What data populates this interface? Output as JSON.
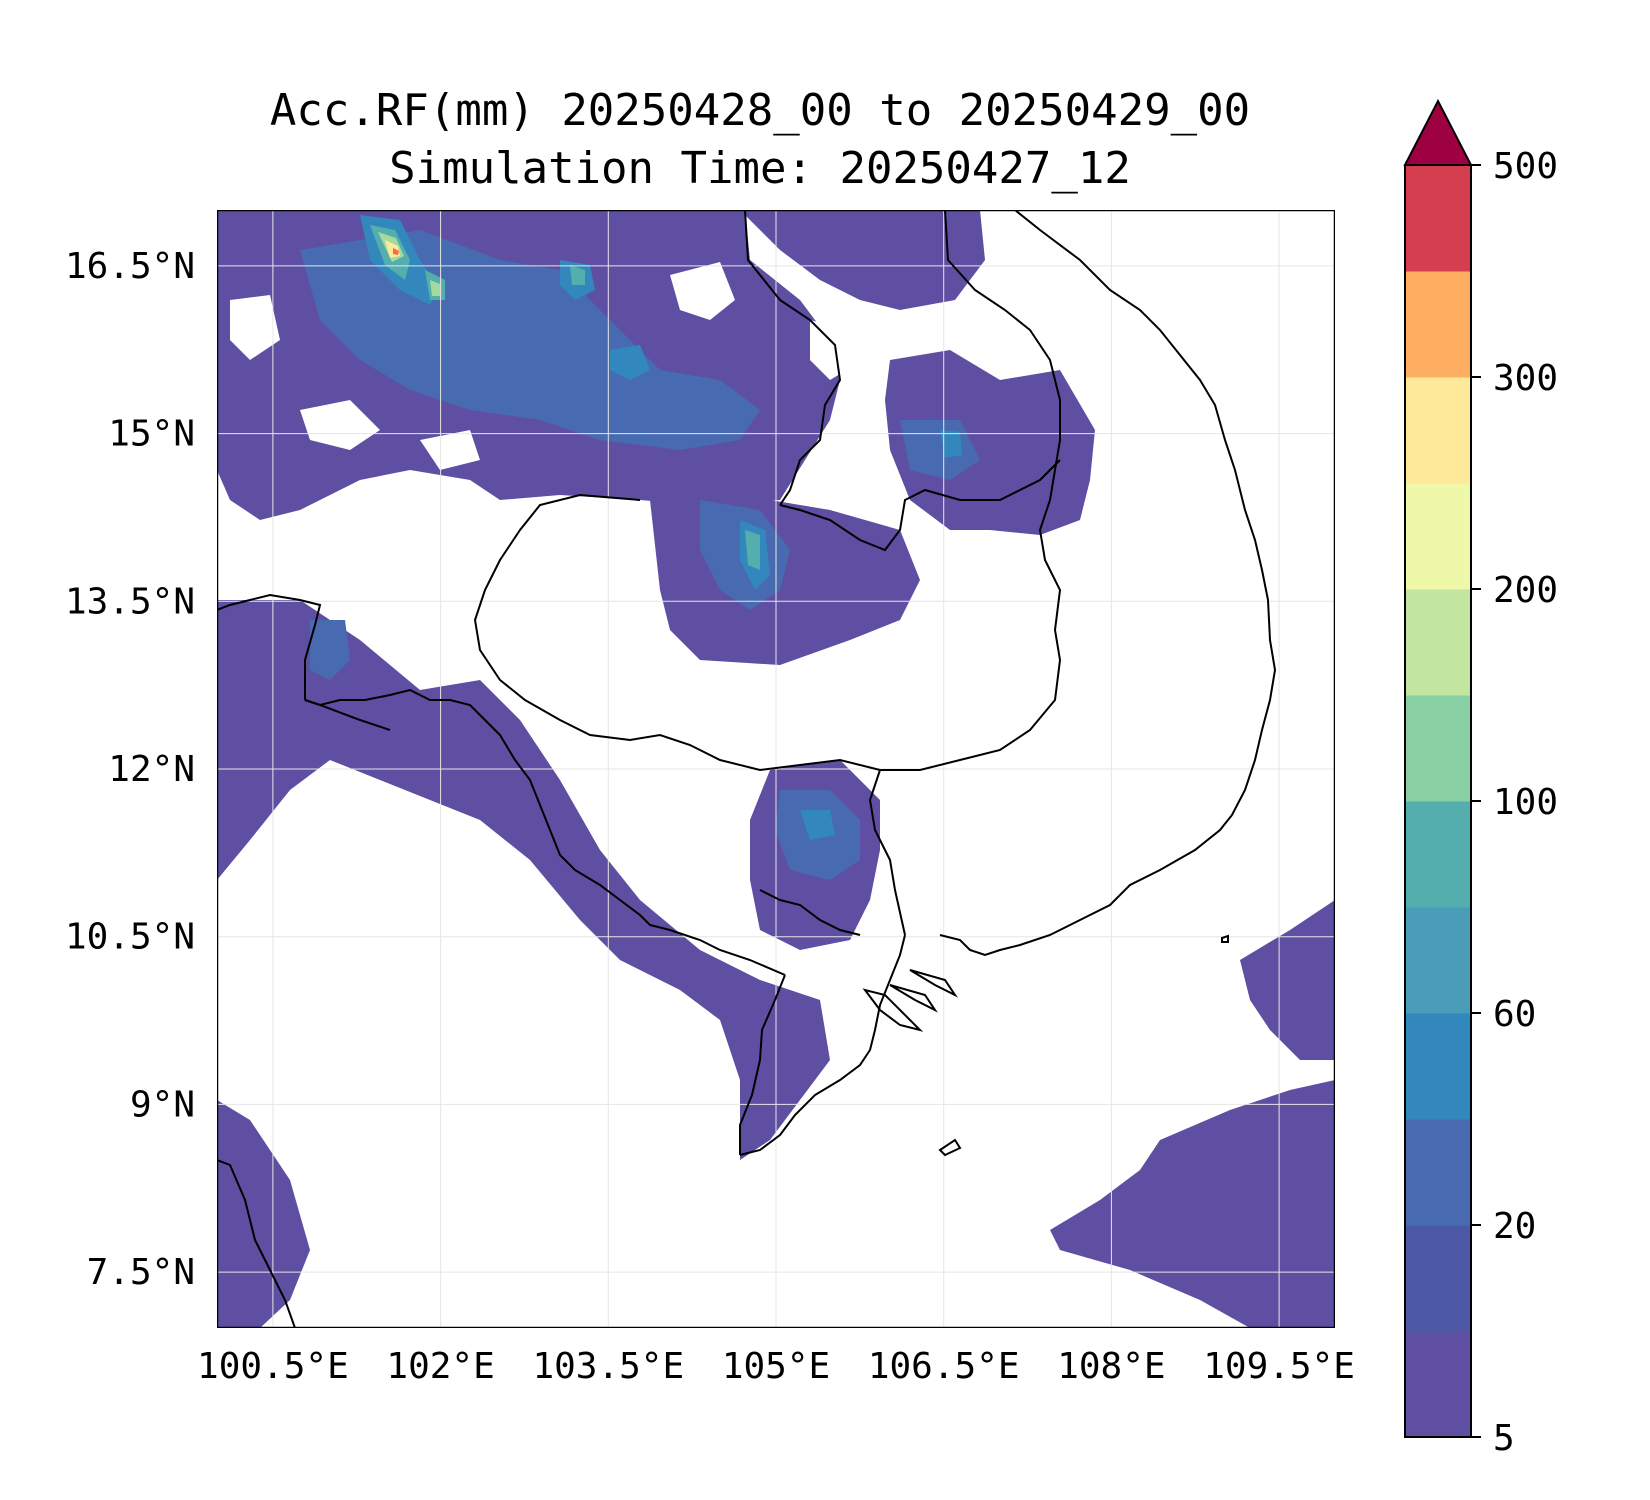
{
  "title": {
    "line1": "Acc.RF(mm) 20250428_00 to 20250429_00",
    "line2": "Simulation Time: 20250427_12"
  },
  "map": {
    "lon_range": [
      100.0,
      110.0
    ],
    "lat_range": [
      7.0,
      17.0
    ],
    "lon_ticks": [
      {
        "value": 100.5,
        "label": "100.5°E"
      },
      {
        "value": 102.0,
        "label": "102°E"
      },
      {
        "value": 103.5,
        "label": "103.5°E"
      },
      {
        "value": 105.0,
        "label": "105°E"
      },
      {
        "value": 106.5,
        "label": "106.5°E"
      },
      {
        "value": 108.0,
        "label": "108°E"
      },
      {
        "value": 109.5,
        "label": "109.5°E"
      }
    ],
    "lat_ticks": [
      {
        "value": 7.5,
        "label": "7.5°N"
      },
      {
        "value": 9.0,
        "label": "9°N"
      },
      {
        "value": 10.5,
        "label": "10.5°N"
      },
      {
        "value": 12.0,
        "label": "12°N"
      },
      {
        "value": 13.5,
        "label": "13.5°N"
      },
      {
        "value": 15.0,
        "label": "15°N"
      },
      {
        "value": 16.5,
        "label": "16.5°N"
      }
    ],
    "grid": true
  },
  "colorbar": {
    "levels": [
      5,
      10,
      20,
      40,
      60,
      80,
      100,
      150,
      200,
      250,
      300,
      400,
      500
    ],
    "tick_labels": [
      "5",
      "20",
      "60",
      "100",
      "200",
      "300",
      "500"
    ],
    "colors": [
      "#5e4fa2",
      "#4c58a6",
      "#486ab0",
      "#3288bd",
      "#4a9cb8",
      "#54aead",
      "#88cfa4",
      "#c2e59f",
      "#eef8a8",
      "#fee99b",
      "#fdae61",
      "#d53e4f"
    ],
    "extend_color": "#9e0142"
  },
  "rain_colors": {
    "light": "#5e4fa2",
    "medium": "#486ab0",
    "moderate": "#3288bd",
    "teal": "#54aead",
    "green": "#a4da9f",
    "yellow": "#fee99b",
    "peak": "#f46d43"
  }
}
